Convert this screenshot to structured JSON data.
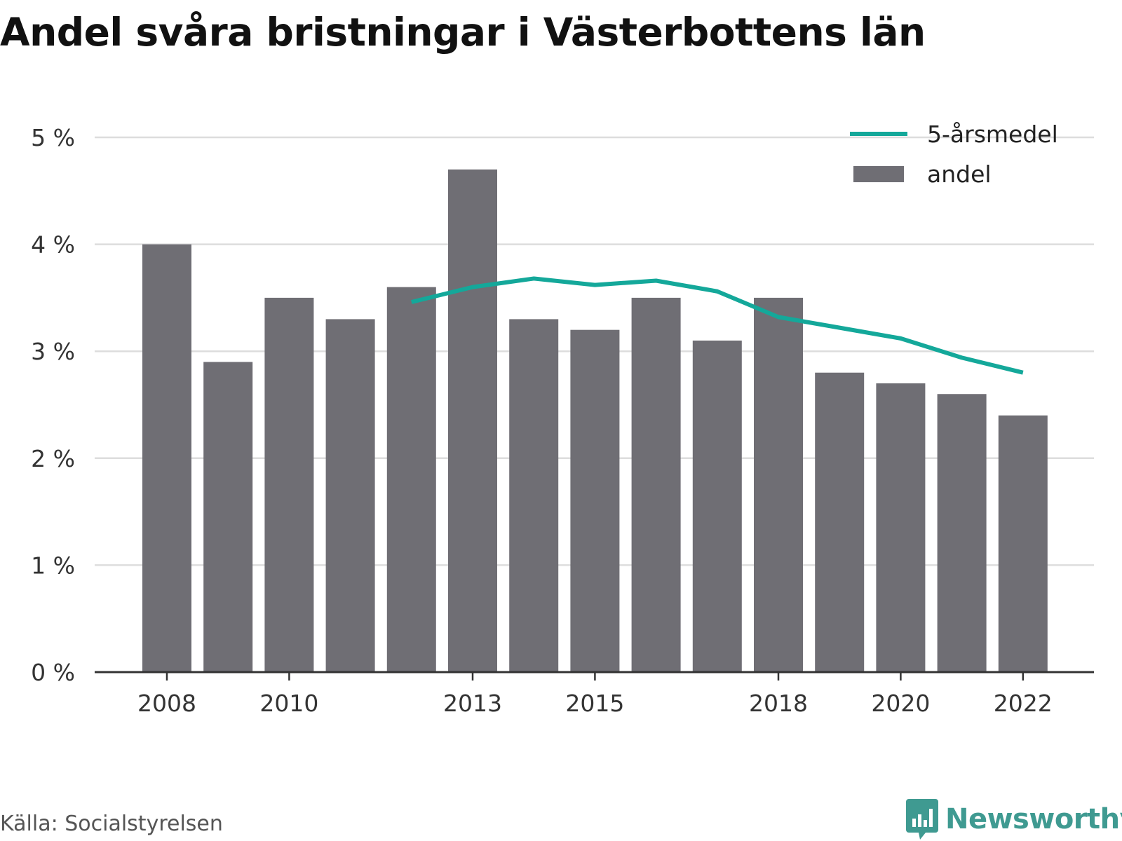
{
  "title": "Andel svåra bristningar i Västerbottens län",
  "source": "Källa: Socialstyrelsen",
  "brand": {
    "name": "Newsworthy",
    "icon": "bar-chart-speech-icon"
  },
  "colors": {
    "bar": "#6f6e74",
    "line": "#14a89a",
    "grid": "#dddddd",
    "axis": "#333333",
    "brand": "#3f9a91"
  },
  "chart_data": {
    "type": "bar",
    "x": [
      2008,
      2009,
      2010,
      2011,
      2012,
      2013,
      2014,
      2015,
      2016,
      2017,
      2018,
      2019,
      2020,
      2021,
      2022
    ],
    "x_tick_labels": [
      "2008",
      "2010",
      "2013",
      "2015",
      "2018",
      "2020",
      "2022"
    ],
    "y_tick_labels": [
      "0 %",
      "1 %",
      "2 %",
      "3 %",
      "4 %",
      "5 %"
    ],
    "ylim": [
      0,
      5
    ],
    "grid": true,
    "legend": {
      "placement": "top-right"
    },
    "series": [
      {
        "name": "andel",
        "type": "bar",
        "values": [
          4.0,
          2.9,
          3.5,
          3.3,
          3.6,
          4.7,
          3.3,
          3.2,
          3.5,
          3.1,
          3.5,
          2.8,
          2.7,
          2.6,
          2.4
        ]
      },
      {
        "name": "5-årsmedel",
        "type": "line",
        "values": [
          null,
          null,
          null,
          null,
          3.46,
          3.6,
          3.68,
          3.62,
          3.66,
          3.56,
          3.32,
          3.22,
          3.12,
          2.94,
          2.8
        ]
      }
    ]
  }
}
